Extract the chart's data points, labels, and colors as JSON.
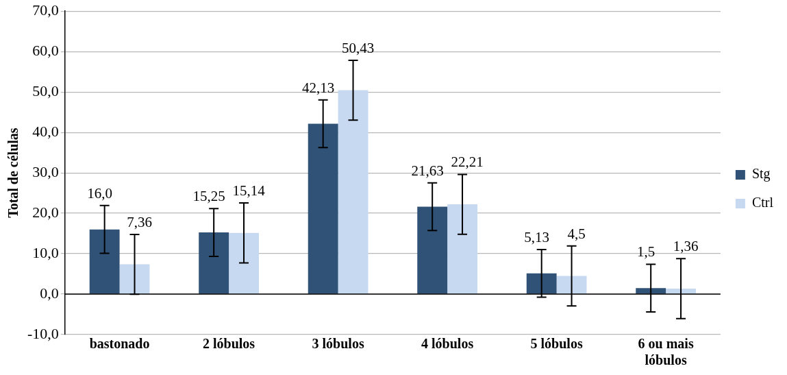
{
  "chart_data": {
    "type": "bar",
    "ylabel": "Total de células",
    "categories": [
      "bastonado",
      "2 lóbulos",
      "3 lóbulos",
      "4 lóbulos",
      "5 lóbulos",
      "6 ou mais lóbulos"
    ],
    "series": [
      {
        "name": "Stg",
        "color": "#2f5276",
        "values": [
          16.0,
          15.25,
          42.13,
          21.63,
          5.13,
          1.5
        ],
        "errors": [
          5.9,
          5.9,
          5.9,
          5.9,
          5.9,
          5.9
        ],
        "value_labels": [
          "16,0",
          "15,25",
          "42,13",
          "21,63",
          "5,13",
          "1,5"
        ]
      },
      {
        "name": "Ctrl",
        "color": "#c6d9f0",
        "values": [
          7.36,
          15.14,
          50.43,
          22.21,
          4.5,
          1.36
        ],
        "errors": [
          7.4,
          7.4,
          7.4,
          7.4,
          7.4,
          7.4
        ],
        "value_labels": [
          "7,36",
          "15,14",
          "50,43",
          "22,21",
          "4,5",
          "1,36"
        ]
      }
    ],
    "ylim": [
      -10,
      70
    ],
    "yticks": [
      {
        "value": -10,
        "label": "-10,0"
      },
      {
        "value": 0,
        "label": "0,0"
      },
      {
        "value": 10,
        "label": "10,0"
      },
      {
        "value": 20,
        "label": "20,0"
      },
      {
        "value": 30,
        "label": "30,0"
      },
      {
        "value": 40,
        "label": "40,0"
      },
      {
        "value": 50,
        "label": "50,0"
      },
      {
        "value": 60,
        "label": "60,0"
      },
      {
        "value": 70,
        "label": "70,0"
      }
    ],
    "grid": "y",
    "legend": "right"
  }
}
